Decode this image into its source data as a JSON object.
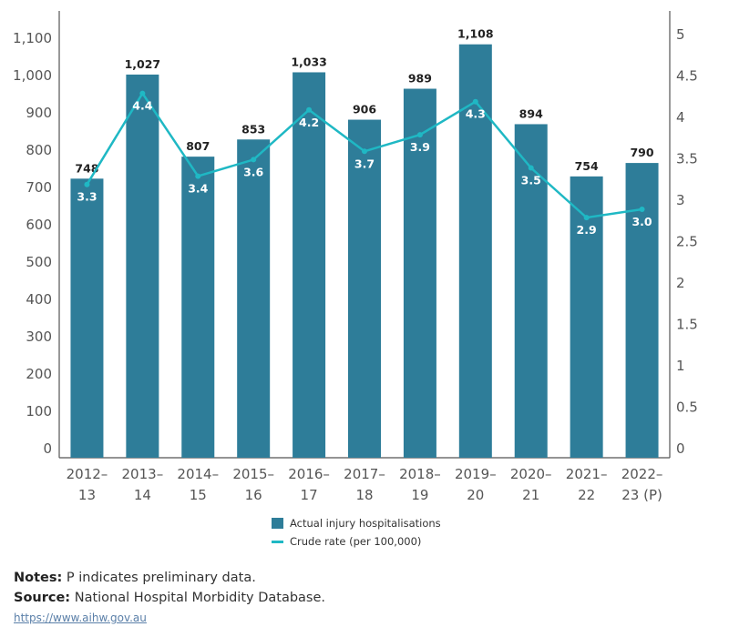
{
  "chart_data": {
    "type": "bar+line",
    "categories": [
      "2012–13",
      "2013–14",
      "2014–15",
      "2015–16",
      "2016–17",
      "2017–18",
      "2018–19",
      "2019–20",
      "2020–21",
      "2021–22",
      "2022–23 (P)"
    ],
    "series": [
      {
        "name": "Actual injury hospitalisations",
        "type": "bar",
        "axis": "left",
        "values": [
          748,
          1027,
          807,
          853,
          1033,
          906,
          989,
          1108,
          894,
          754,
          790
        ]
      },
      {
        "name": "Crude rate (per 100,000)",
        "type": "line",
        "axis": "right",
        "values": [
          3.3,
          4.4,
          3.4,
          3.6,
          4.2,
          3.7,
          3.9,
          4.3,
          3.5,
          2.9,
          3.0
        ]
      }
    ],
    "left_axis": {
      "ylim": [
        0,
        1100
      ],
      "ticks": [
        "0",
        "100",
        "200",
        "300",
        "400",
        "500",
        "600",
        "700",
        "800",
        "900",
        "1,000",
        "1,100"
      ]
    },
    "right_axis": {
      "ylim": [
        0,
        5
      ],
      "ticks": [
        "0",
        "0.5",
        "1",
        "1.5",
        "2",
        "2.5",
        "3",
        "3.5",
        "4",
        "4.5",
        "5"
      ]
    },
    "bar_labels": [
      "748",
      "1,027",
      "807",
      "853",
      "1,033",
      "906",
      "989",
      "1,108",
      "894",
      "754",
      "790"
    ],
    "rate_labels": [
      "3.3",
      "4.4",
      "3.4",
      "3.6",
      "4.2",
      "3.7",
      "3.9",
      "4.3",
      "3.5",
      "2.9",
      "3.0"
    ],
    "legend_position": "bottom",
    "grid": false,
    "colors": {
      "bar": "#2e7d99",
      "line": "#1fb8c4"
    }
  },
  "notes": {
    "label": "Notes:",
    "text": " P indicates preliminary data."
  },
  "source": {
    "label": "Source:",
    "text": " National Hospital Morbidity Database."
  },
  "link": "https://www.aihw.gov.au"
}
